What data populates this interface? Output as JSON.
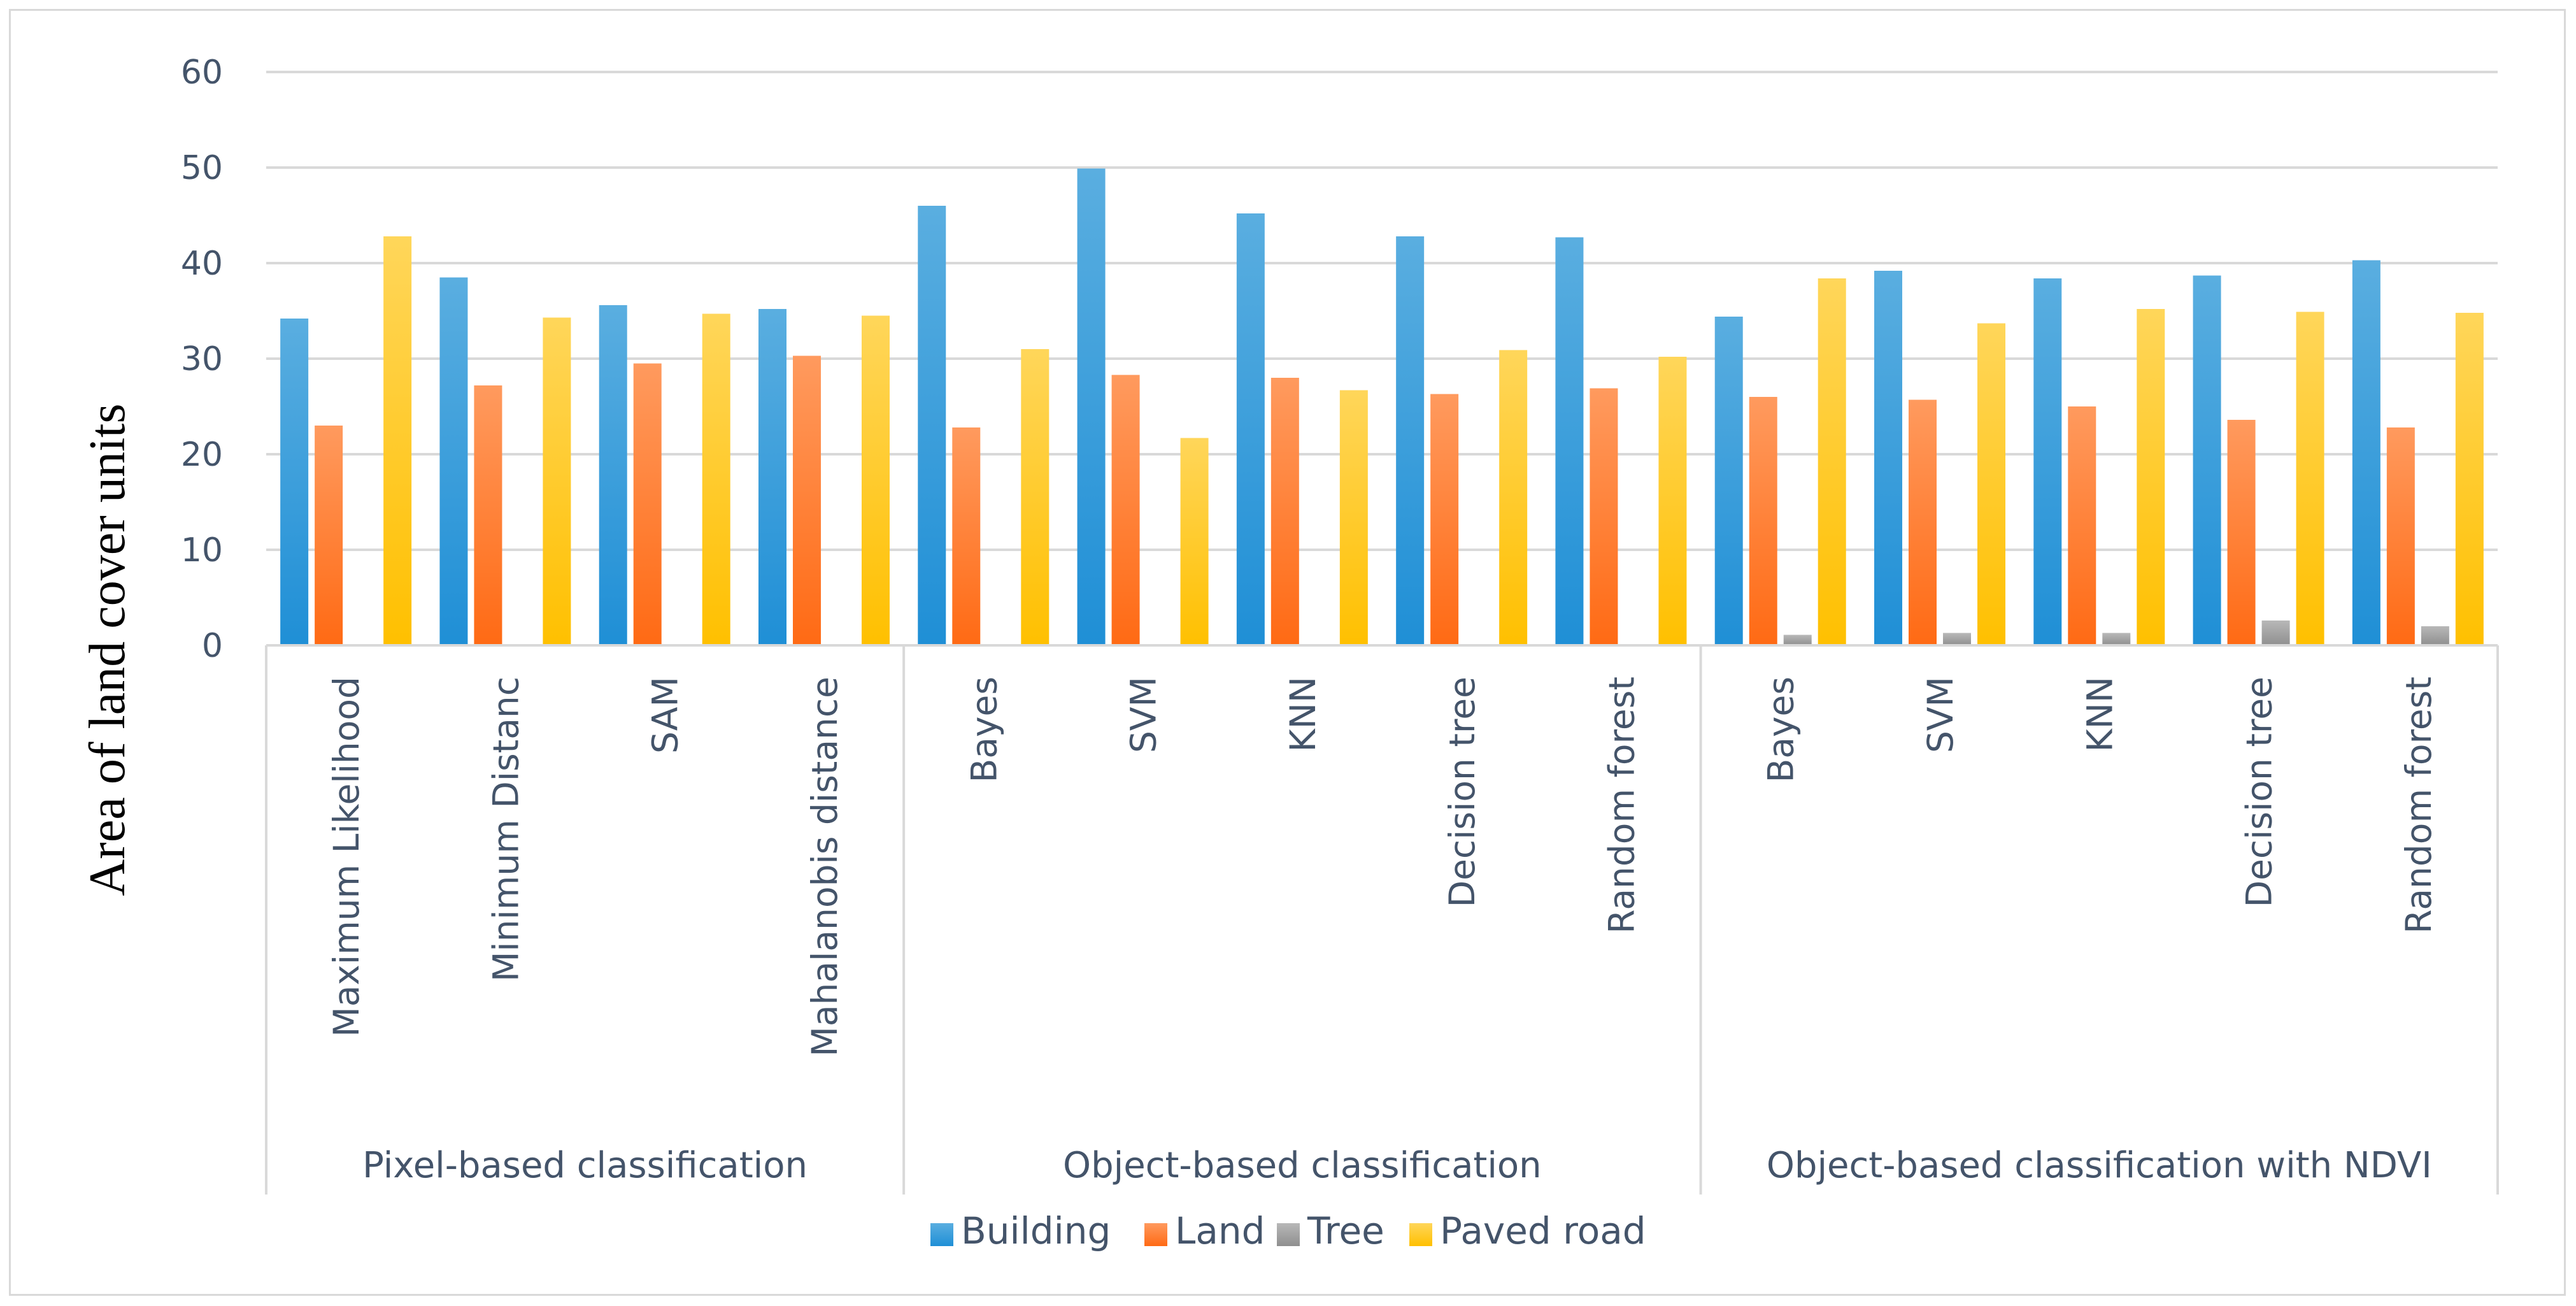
{
  "chart_data": {
    "type": "bar",
    "title": "",
    "xlabel": "",
    "ylabel": "Area of land cover units",
    "ylim": [
      0,
      60
    ],
    "yticks": [
      0,
      10,
      20,
      30,
      40,
      50,
      60
    ],
    "grid": true,
    "legend_position": "bottom",
    "groups": [
      {
        "label": "Pixel-based classification",
        "count": 4
      },
      {
        "label": "Object-based classification",
        "count": 5
      },
      {
        "label": "Object-based classification with NDVI",
        "count": 5
      }
    ],
    "categories": [
      "Maximum Likelihood",
      "Minimum Distanc",
      "SAM",
      "Mahalanobis distance",
      "Bayes",
      "SVM",
      "KNN",
      "Decision tree",
      "Random forest",
      "Bayes",
      "SVM",
      "KNN",
      "Decision tree",
      "Random forest"
    ],
    "series": [
      {
        "name": "Building",
        "color": "#1f8fd6",
        "color_top": "#5aaee0",
        "values": [
          34.2,
          38.5,
          35.6,
          35.2,
          46.0,
          49.9,
          45.2,
          42.8,
          42.7,
          34.4,
          39.2,
          38.4,
          38.7,
          40.3
        ]
      },
      {
        "name": "Land",
        "color": "#ff6a14",
        "color_top": "#ff9a5e",
        "values": [
          23.0,
          27.2,
          29.5,
          30.3,
          22.8,
          28.3,
          28.0,
          26.3,
          26.9,
          26.0,
          25.7,
          25.0,
          23.6,
          22.8
        ]
      },
      {
        "name": "Tree",
        "color": "#8f8f8f",
        "color_top": "#b8b8b8",
        "values": [
          0,
          0,
          0,
          0,
          0,
          0,
          0,
          0,
          0,
          1.1,
          1.3,
          1.3,
          2.6,
          2.0
        ]
      },
      {
        "name": "Paved road",
        "color": "#ffc000",
        "color_top": "#ffd65a",
        "values": [
          42.8,
          34.3,
          34.7,
          34.5,
          31.0,
          21.7,
          26.7,
          30.9,
          30.2,
          38.4,
          33.7,
          35.2,
          34.9,
          34.8
        ]
      }
    ]
  }
}
